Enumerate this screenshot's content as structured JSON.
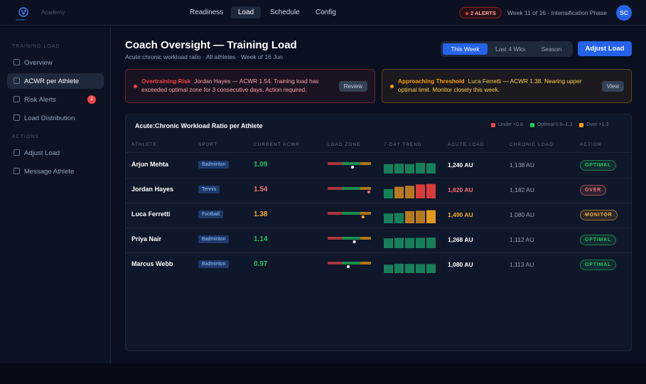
{
  "header": {
    "logo_text": "Verletes",
    "brand": "Academy",
    "nav": [
      "Readiness",
      "Load",
      "Schedule",
      "Config"
    ],
    "alerts_pill": "2 ALERTS",
    "week": "Week 11 of 16 · Intensification Phase",
    "avatar": "SC"
  },
  "sidebar": {
    "sections": [
      {
        "title": "TRAINING LOAD",
        "items": [
          {
            "label": "Overview"
          },
          {
            "label": "ACWR per Athlete"
          },
          {
            "label": "Risk Alerts",
            "badge": "2"
          },
          {
            "label": "Load Distribution"
          }
        ]
      },
      {
        "title": "ACTIONS",
        "items": [
          {
            "label": "Adjust Load"
          },
          {
            "label": "Message Athlete"
          }
        ]
      }
    ]
  },
  "main": {
    "title": "Coach Oversight — Training Load",
    "subtitle": "Acute:chronic workload ratio · All athletes · Week of 16 Jun",
    "periods": [
      "This Week",
      "Last 4 Wks",
      "Season"
    ],
    "button": "Adjust Load",
    "alerts": [
      {
        "title": "Overtraining Risk",
        "text": "Jordan Hayes — ACWR 1.54. Training load has exceeded optimal zone for 3 consecutive days. Action required.",
        "button": "Review",
        "color": "#ef4444"
      },
      {
        "title": "Approaching Threshold",
        "text": "Luca Ferretti — ACWR 1.38. Nearing upper optimal limit. Monitor closely this week.",
        "button": "View",
        "color": "#f59e0b"
      }
    ]
  },
  "table": {
    "title": "Acute:Chronic Workload Ratio per Athlete",
    "legend": [
      {
        "label": "Under <0.8",
        "color": "#ef4444"
      },
      {
        "label": "Optimal 0.8–1.3",
        "color": "#22c55e"
      },
      {
        "label": "Over >1.3",
        "color": "#f59e0b"
      }
    ],
    "zone_range": [
      0.4,
      1.6
    ],
    "zone_thresholds": [
      0.8,
      1.3
    ],
    "columns": [
      "ATHLETE",
      "SPORT",
      "CURRENT ACWR",
      "LOAD ZONE",
      "7-DAY TREND",
      "ACUTE LOAD",
      "CHRONIC LOAD",
      "ACTION"
    ],
    "rows": [
      {
        "athlete": "Arjun Mehta",
        "sport": "Badminton",
        "acwr": 1.09,
        "color": "#22c55e",
        "trend": [
          1.0,
          1.05,
          1.02,
          1.15,
          1.1
        ],
        "trend_colors": [
          "#15805a",
          "#15805a",
          "#15805a",
          "#15805a",
          "#15805a"
        ],
        "acute": "1,240 AU",
        "chronic": "1,138 AU",
        "action": "OPTIMAL"
      },
      {
        "athlete": "Jordan Hayes",
        "sport": "Tennis",
        "acwr": 1.54,
        "color": "#f87171",
        "trend": [
          1.0,
          1.25,
          1.35,
          1.5,
          1.55
        ],
        "trend_colors": [
          "#15805a",
          "#b7791f",
          "#b7791f",
          "#dc3b3b",
          "#dc3b3b"
        ],
        "acute": "1,820 AU",
        "chronic": "1,182 AU",
        "action": "OVER"
      },
      {
        "athlete": "Luca Ferretti",
        "sport": "Football",
        "acwr": 1.38,
        "color": "#f5b02e",
        "trend": [
          1.05,
          1.1,
          1.3,
          1.35,
          1.4
        ],
        "trend_colors": [
          "#15805a",
          "#15805a",
          "#b7791f",
          "#b7791f",
          "#e39a1c"
        ],
        "acute": "1,490 AU",
        "chronic": "1,080 AU",
        "action": "MONITOR"
      },
      {
        "athlete": "Priya Nair",
        "sport": "Badminton",
        "acwr": 1.14,
        "color": "#22c55e",
        "trend": [
          1.05,
          1.1,
          1.1,
          1.12,
          1.14
        ],
        "trend_colors": [
          "#15805a",
          "#15805a",
          "#15805a",
          "#15805a",
          "#15805a"
        ],
        "acute": "1,268 AU",
        "chronic": "1,112 AU",
        "action": "OPTIMAL"
      },
      {
        "athlete": "Marcus Webb",
        "sport": "Badminton",
        "acwr": 0.97,
        "color": "#22c55e",
        "trend": [
          0.9,
          1.0,
          0.98,
          0.96,
          0.97
        ],
        "trend_colors": [
          "#15805a",
          "#15805a",
          "#15805a",
          "#15805a",
          "#15805a"
        ],
        "acute": "1,080 AU",
        "chronic": "1,113 AU",
        "action": "OPTIMAL"
      }
    ]
  }
}
